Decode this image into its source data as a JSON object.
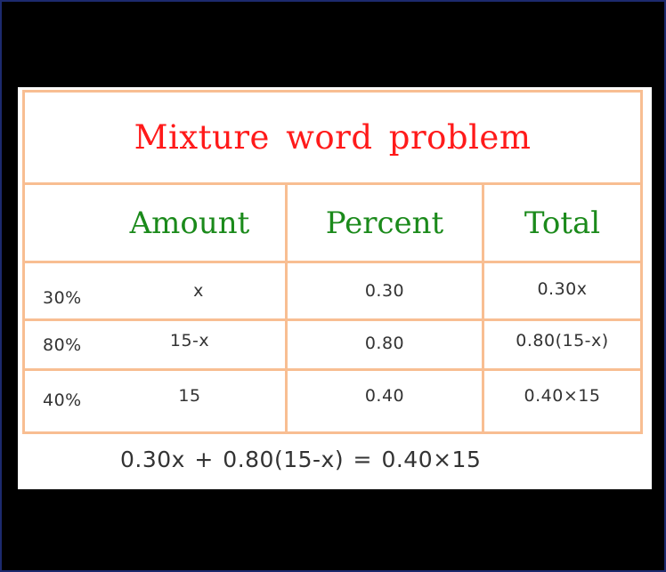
{
  "title": "Mixture word problem",
  "columns": {
    "amount": "Amount",
    "percent": "Percent",
    "total": "Total"
  },
  "rows": [
    {
      "label": "30%",
      "amount": "x",
      "percent": "0.30",
      "total": "0.30x"
    },
    {
      "label": "80%",
      "amount": "15-x",
      "percent": "0.80",
      "total": "0.80(15-x)"
    },
    {
      "label": "40%",
      "amount": "15",
      "percent": "0.40",
      "total": "0.40×15"
    }
  ],
  "equation": "0.30x + 0.80(15-x) = 0.40×15",
  "colors": {
    "title": "#ff1a1a",
    "header": "#1b8a1b",
    "border": "#f8be92",
    "text": "#333333",
    "background": "#000000"
  }
}
